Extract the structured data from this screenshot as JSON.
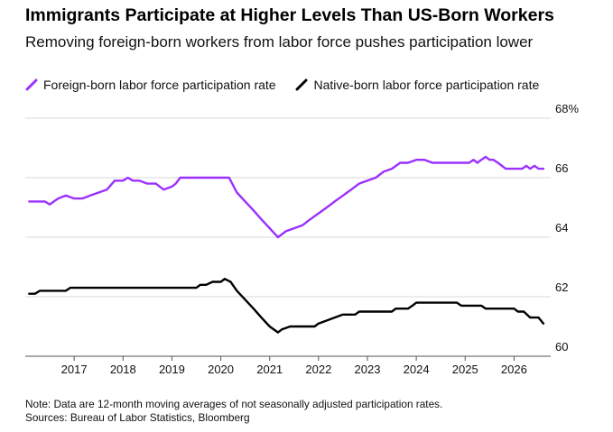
{
  "title": "Immigrants Participate at Higher Levels Than US-Born Workers",
  "subtitle": "Removing foreign-born workers from labor force pushes participation lower",
  "notes": {
    "note": "Note: Data are 12-month moving averages of not seasonally adjusted participation rates.",
    "sources": "Sources: Bureau of Labor Statistics, Bloomberg"
  },
  "colors": {
    "foreign": "#9b30ff",
    "native": "#000000",
    "grid": "#d9d9d9",
    "axis": "#555555"
  },
  "chart_data": {
    "type": "line",
    "title": "Immigrants Participate at Higher Levels Than US-Born Workers",
    "subtitle": "Removing foreign-born workers from labor force pushes participation lower",
    "xlabel": "",
    "ylabel": "",
    "xlim": [
      2016.0,
      2026.75
    ],
    "ylim": [
      60,
      68
    ],
    "y_ticks": [
      {
        "value": 60,
        "label": "60"
      },
      {
        "value": 62,
        "label": "62"
      },
      {
        "value": 64,
        "label": "64"
      },
      {
        "value": 66,
        "label": "66"
      },
      {
        "value": 68,
        "label": "68%"
      }
    ],
    "x_ticks": [
      {
        "value": 2017,
        "label": "2017"
      },
      {
        "value": 2018,
        "label": "2018"
      },
      {
        "value": 2019,
        "label": "2019"
      },
      {
        "value": 2020,
        "label": "2020"
      },
      {
        "value": 2021,
        "label": "2021"
      },
      {
        "value": 2022,
        "label": "2022"
      },
      {
        "value": 2023,
        "label": "2023"
      },
      {
        "value": 2024,
        "label": "2024"
      },
      {
        "value": 2025,
        "label": "2025"
      },
      {
        "value": 2026,
        "label": "2026"
      }
    ],
    "grid": true,
    "legend_position": "top-left",
    "series": [
      {
        "name": "Foreign-born labor force participation rate",
        "color": "#9b30ff",
        "points": [
          [
            2016.08,
            65.2
          ],
          [
            2016.4,
            65.2
          ],
          [
            2016.5,
            65.1
          ],
          [
            2016.67,
            65.3
          ],
          [
            2016.83,
            65.4
          ],
          [
            2017.0,
            65.3
          ],
          [
            2017.17,
            65.3
          ],
          [
            2017.33,
            65.4
          ],
          [
            2017.5,
            65.5
          ],
          [
            2017.67,
            65.6
          ],
          [
            2017.83,
            65.9
          ],
          [
            2018.0,
            65.9
          ],
          [
            2018.1,
            66.0
          ],
          [
            2018.2,
            65.9
          ],
          [
            2018.33,
            65.9
          ],
          [
            2018.5,
            65.8
          ],
          [
            2018.67,
            65.8
          ],
          [
            2018.83,
            65.6
          ],
          [
            2019.0,
            65.7
          ],
          [
            2019.08,
            65.8
          ],
          [
            2019.17,
            66.0
          ],
          [
            2019.5,
            66.0
          ],
          [
            2019.83,
            66.0
          ],
          [
            2020.0,
            66.0
          ],
          [
            2020.17,
            66.0
          ],
          [
            2020.33,
            65.5
          ],
          [
            2020.5,
            65.2
          ],
          [
            2020.67,
            64.9
          ],
          [
            2020.83,
            64.6
          ],
          [
            2021.0,
            64.3
          ],
          [
            2021.17,
            64.0
          ],
          [
            2021.33,
            64.2
          ],
          [
            2021.5,
            64.3
          ],
          [
            2021.67,
            64.4
          ],
          [
            2021.83,
            64.6
          ],
          [
            2022.0,
            64.8
          ],
          [
            2022.17,
            65.0
          ],
          [
            2022.33,
            65.2
          ],
          [
            2022.5,
            65.4
          ],
          [
            2022.67,
            65.6
          ],
          [
            2022.83,
            65.8
          ],
          [
            2023.0,
            65.9
          ],
          [
            2023.17,
            66.0
          ],
          [
            2023.33,
            66.2
          ],
          [
            2023.5,
            66.3
          ],
          [
            2023.67,
            66.5
          ],
          [
            2023.83,
            66.5
          ],
          [
            2024.0,
            66.6
          ],
          [
            2024.17,
            66.6
          ],
          [
            2024.33,
            66.5
          ],
          [
            2024.5,
            66.5
          ],
          [
            2024.67,
            66.5
          ],
          [
            2024.83,
            66.5
          ],
          [
            2025.0,
            66.5
          ],
          [
            2025.08,
            66.5
          ],
          [
            2025.17,
            66.6
          ],
          [
            2025.25,
            66.5
          ],
          [
            2025.33,
            66.6
          ],
          [
            2025.42,
            66.7
          ],
          [
            2025.5,
            66.6
          ],
          [
            2025.58,
            66.6
          ],
          [
            2025.67,
            66.5
          ],
          [
            2025.83,
            66.3
          ],
          [
            2026.0,
            66.3
          ],
          [
            2026.17,
            66.3
          ],
          [
            2026.25,
            66.4
          ],
          [
            2026.33,
            66.3
          ],
          [
            2026.42,
            66.4
          ],
          [
            2026.5,
            66.3
          ],
          [
            2026.6,
            66.3
          ]
        ]
      },
      {
        "name": "Native-born labor force participation rate",
        "color": "#000000",
        "points": [
          [
            2016.08,
            62.1
          ],
          [
            2016.2,
            62.1
          ],
          [
            2016.3,
            62.2
          ],
          [
            2016.5,
            62.2
          ],
          [
            2016.67,
            62.2
          ],
          [
            2016.83,
            62.2
          ],
          [
            2016.92,
            62.3
          ],
          [
            2017.17,
            62.3
          ],
          [
            2017.5,
            62.3
          ],
          [
            2018.0,
            62.3
          ],
          [
            2018.5,
            62.3
          ],
          [
            2019.0,
            62.3
          ],
          [
            2019.5,
            62.3
          ],
          [
            2019.58,
            62.4
          ],
          [
            2019.7,
            62.4
          ],
          [
            2019.83,
            62.5
          ],
          [
            2020.0,
            62.5
          ],
          [
            2020.08,
            62.6
          ],
          [
            2020.2,
            62.5
          ],
          [
            2020.33,
            62.2
          ],
          [
            2020.5,
            61.9
          ],
          [
            2020.67,
            61.6
          ],
          [
            2020.83,
            61.3
          ],
          [
            2021.0,
            61.0
          ],
          [
            2021.17,
            60.8
          ],
          [
            2021.25,
            60.9
          ],
          [
            2021.42,
            61.0
          ],
          [
            2021.67,
            61.0
          ],
          [
            2021.92,
            61.0
          ],
          [
            2022.0,
            61.1
          ],
          [
            2022.17,
            61.2
          ],
          [
            2022.33,
            61.3
          ],
          [
            2022.5,
            61.4
          ],
          [
            2022.75,
            61.4
          ],
          [
            2022.83,
            61.5
          ],
          [
            2023.0,
            61.5
          ],
          [
            2023.5,
            61.5
          ],
          [
            2023.58,
            61.6
          ],
          [
            2023.83,
            61.6
          ],
          [
            2023.92,
            61.7
          ],
          [
            2024.0,
            61.8
          ],
          [
            2024.5,
            61.8
          ],
          [
            2024.83,
            61.8
          ],
          [
            2024.92,
            61.7
          ],
          [
            2025.0,
            61.7
          ],
          [
            2025.33,
            61.7
          ],
          [
            2025.42,
            61.6
          ],
          [
            2025.75,
            61.6
          ],
          [
            2026.0,
            61.6
          ],
          [
            2026.08,
            61.5
          ],
          [
            2026.2,
            61.5
          ],
          [
            2026.33,
            61.3
          ],
          [
            2026.5,
            61.3
          ],
          [
            2026.6,
            61.1
          ]
        ]
      }
    ]
  }
}
